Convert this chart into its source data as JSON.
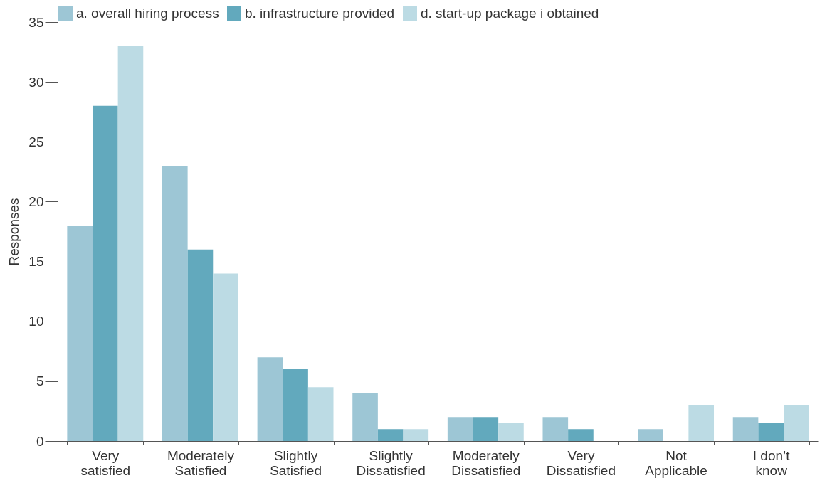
{
  "chart_data": {
    "type": "bar",
    "ylabel": "Responses",
    "categories": [
      "Very satisfied",
      "Moderately Satisfied",
      "Slightly Satisfied",
      "Slightly Dissatisfied",
      "Moderately Dissatisfied",
      "Very Dissatisfied",
      "Not Applicable",
      "I don’t know"
    ],
    "series": [
      {
        "name": "a. overall hiring process",
        "color": "#9dc6d5",
        "values": [
          18,
          23,
          7,
          4,
          2,
          2,
          1,
          2
        ]
      },
      {
        "name": "b. infrastructure provided",
        "color": "#62a9bd",
        "values": [
          28,
          16,
          6,
          1,
          2,
          1,
          0,
          1.5
        ]
      },
      {
        "name": "d. start-up package i obtained",
        "color": "#bcdbe4",
        "values": [
          33,
          14,
          4.5,
          1,
          1.5,
          0,
          3,
          3
        ]
      }
    ],
    "ylim": [
      0,
      35
    ],
    "yticks": [
      0,
      5,
      10,
      15,
      20,
      25,
      30,
      35
    ],
    "grid": false,
    "legend": "top left"
  }
}
